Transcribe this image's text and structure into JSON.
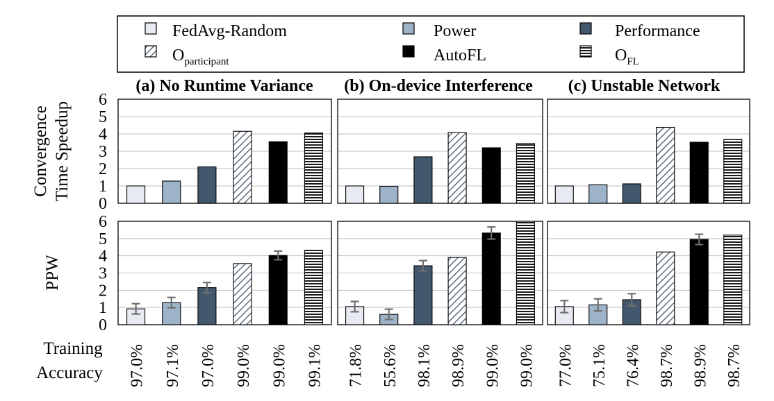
{
  "colors": {
    "fedavg_random": "#e7ebf1",
    "power": "#9eb3c7",
    "performance": "#44586d",
    "autofl": "#000000",
    "stroke": "#000000",
    "grid": "#bfbfbf",
    "errorbar": "#6e6e6e"
  },
  "legend": {
    "items": [
      {
        "key": "fedavg_random",
        "label": "FedAvg-Random",
        "sub": "",
        "pattern": "solid"
      },
      {
        "key": "power",
        "label": "Power",
        "sub": "",
        "pattern": "solid"
      },
      {
        "key": "performance",
        "label": "Performance",
        "sub": "",
        "pattern": "solid"
      },
      {
        "key": "o_participant",
        "label": "O",
        "sub": "participant",
        "pattern": "diagonal"
      },
      {
        "key": "autofl",
        "label": "AutoFL",
        "sub": "",
        "pattern": "solid"
      },
      {
        "key": "o_fl",
        "label": "O",
        "sub": "FL",
        "pattern": "horizontal"
      }
    ]
  },
  "row_labels": {
    "training_accuracy_line1": "Training",
    "training_accuracy_line2": "Accuracy"
  },
  "chart_data": [
    {
      "type": "bar",
      "panel": "(a) No Runtime Variance",
      "title": "(a) No Runtime Variance",
      "ylabel": "Convergence Time Speedup",
      "ylim": [
        0,
        6
      ],
      "yticks": [
        "0",
        "1",
        "2",
        "3",
        "4",
        "5",
        "6"
      ],
      "grid": true,
      "categories": [
        "FedAvg-Random",
        "Power",
        "Performance",
        "Oparticipant",
        "AutoFL",
        "OFL"
      ],
      "values": [
        1.0,
        1.28,
        2.1,
        4.15,
        3.55,
        4.05
      ]
    },
    {
      "type": "bar",
      "panel": "(b) On-device Interference",
      "title": "(b) On-device Interference",
      "ylim": [
        0,
        6
      ],
      "grid": true,
      "categories": [
        "FedAvg-Random",
        "Power",
        "Performance",
        "Oparticipant",
        "AutoFL",
        "OFL"
      ],
      "values": [
        1.0,
        0.98,
        2.68,
        4.08,
        3.2,
        3.45
      ]
    },
    {
      "type": "bar",
      "panel": "(c) Unstable Network",
      "title": "(c) Unstable Network",
      "ylim": [
        0,
        6
      ],
      "grid": true,
      "categories": [
        "FedAvg-Random",
        "Power",
        "Performance",
        "Oparticipant",
        "AutoFL",
        "OFL"
      ],
      "values": [
        1.0,
        1.07,
        1.12,
        4.38,
        3.52,
        3.68
      ]
    },
    {
      "type": "bar",
      "panel": "(a) No Runtime Variance",
      "ylabel": "PPW",
      "ylim": [
        0,
        6
      ],
      "yticks": [
        "0",
        "1",
        "2",
        "3",
        "4",
        "5",
        "6"
      ],
      "grid": true,
      "categories": [
        "FedAvg-Random",
        "Power",
        "Performance",
        "Oparticipant",
        "AutoFL",
        "OFL"
      ],
      "values": [
        0.92,
        1.28,
        2.15,
        3.55,
        4.02,
        4.32
      ],
      "errors": [
        0.3,
        0.3,
        0.3,
        null,
        0.25,
        null
      ],
      "training_accuracy": [
        "97.0%",
        "97.1%",
        "97.0%",
        "99.0%",
        "99.0%",
        "99.1%"
      ]
    },
    {
      "type": "bar",
      "panel": "(b) On-device Interference",
      "ylim": [
        0,
        6
      ],
      "grid": true,
      "categories": [
        "FedAvg-Random",
        "Power",
        "Performance",
        "Oparticipant",
        "AutoFL",
        "OFL"
      ],
      "values": [
        1.05,
        0.6,
        3.42,
        3.9,
        5.32,
        6.0
      ],
      "errors": [
        0.3,
        0.3,
        0.3,
        null,
        0.35,
        null
      ],
      "training_accuracy": [
        "71.8%",
        "55.6%",
        "98.1%",
        "98.9%",
        "99.0%",
        "99.0%"
      ]
    },
    {
      "type": "bar",
      "panel": "(c) Unstable Network",
      "ylim": [
        0,
        6
      ],
      "grid": true,
      "categories": [
        "FedAvg-Random",
        "Power",
        "Performance",
        "Oparticipant",
        "AutoFL",
        "OFL"
      ],
      "values": [
        1.05,
        1.15,
        1.45,
        4.22,
        4.95,
        5.2
      ],
      "errors": [
        0.35,
        0.35,
        0.35,
        null,
        0.3,
        null
      ],
      "training_accuracy": [
        "77.0%",
        "75.1%",
        "76.4%",
        "98.7%",
        "98.9%",
        "98.7%"
      ]
    }
  ]
}
